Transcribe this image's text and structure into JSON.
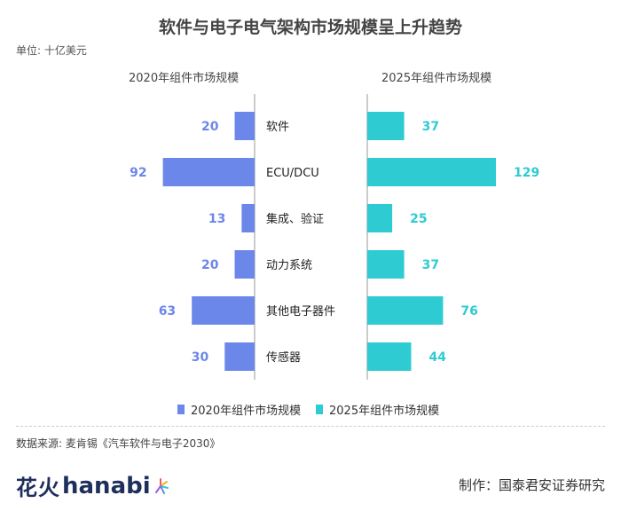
{
  "title": "软件与电子电气架构市场规模呈上升趋势",
  "unit_label": "单位: 十亿美元",
  "left_heading": "2020年组件市场规模",
  "right_heading": "2025年组件市场规模",
  "colors": {
    "left": "#6c87ea",
    "right": "#2ecbd3",
    "axis": "#999999"
  },
  "chart_data": {
    "type": "bar",
    "orientation": "horizontal-butterfly",
    "categories": [
      "软件",
      "ECU/DCU",
      "集成、验证",
      "动力系统",
      "其他电子器件",
      "传感器"
    ],
    "series": [
      {
        "name": "2020年组件市场规模",
        "values": [
          20,
          92,
          13,
          20,
          63,
          30
        ]
      },
      {
        "name": "2025年组件市场规模",
        "values": [
          37,
          129,
          25,
          37,
          76,
          44
        ]
      }
    ],
    "xlim": [
      0,
      129
    ]
  },
  "legend": [
    "2020年组件市场规模",
    "2025年组件市场规模"
  ],
  "source": "数据来源: 麦肯锡《汽车软件与电子2030》",
  "brand": {
    "zh": "花火",
    "en": "hanabi"
  },
  "credit": "制作：国泰君安证券研究"
}
